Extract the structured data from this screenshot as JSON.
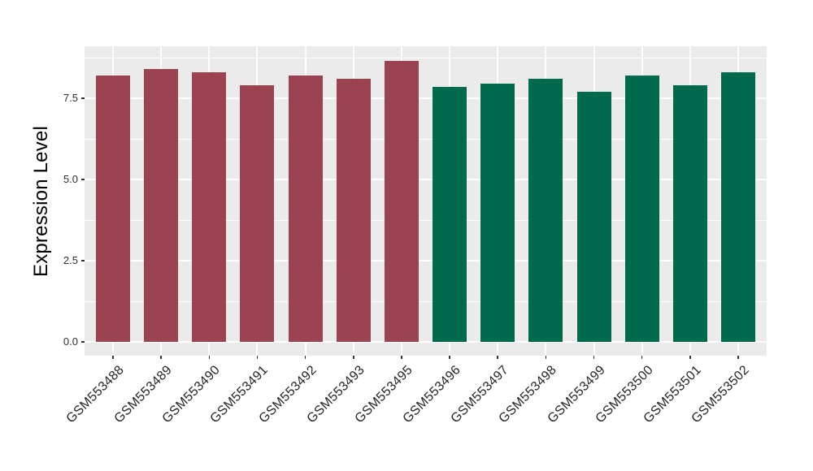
{
  "chart_data": {
    "type": "bar",
    "title": "",
    "xlabel": "",
    "ylabel": "Expression Level",
    "categories": [
      "GSM553488",
      "GSM553489",
      "GSM553490",
      "GSM553491",
      "GSM553492",
      "GSM553493",
      "GSM553495",
      "GSM553496",
      "GSM553497",
      "GSM553498",
      "GSM553499",
      "GSM553500",
      "GSM553501",
      "GSM553502"
    ],
    "values": [
      8.2,
      8.4,
      8.3,
      7.9,
      8.2,
      8.1,
      8.65,
      7.85,
      7.95,
      8.1,
      7.7,
      8.2,
      7.9,
      8.3
    ],
    "bar_groups": [
      "group1",
      "group1",
      "group1",
      "group1",
      "group1",
      "group1",
      "group1",
      "group2",
      "group2",
      "group2",
      "group2",
      "group2",
      "group2",
      "group2"
    ],
    "group_colors": {
      "group1": "#9C4351",
      "group2": "#006B4C"
    },
    "ytick_labels": [
      "0.0",
      "2.5",
      "5.0",
      "7.5"
    ],
    "yticks": [
      0.0,
      2.5,
      5.0,
      7.5
    ],
    "minor_yticks": [
      1.25,
      3.75,
      6.25,
      8.75
    ],
    "ylim": [
      -0.43,
      9.1
    ],
    "grid": true,
    "legend": "none",
    "colors": {
      "panel_background": "#EBEBEB",
      "major_gridline": "#FFFFFF",
      "minor_gridline": "#FFFFFF",
      "tick_mark": "#333333",
      "tick_label_text": "#303030",
      "axis_title_text": "#000000",
      "figure_background": "#FFFFFF"
    }
  }
}
